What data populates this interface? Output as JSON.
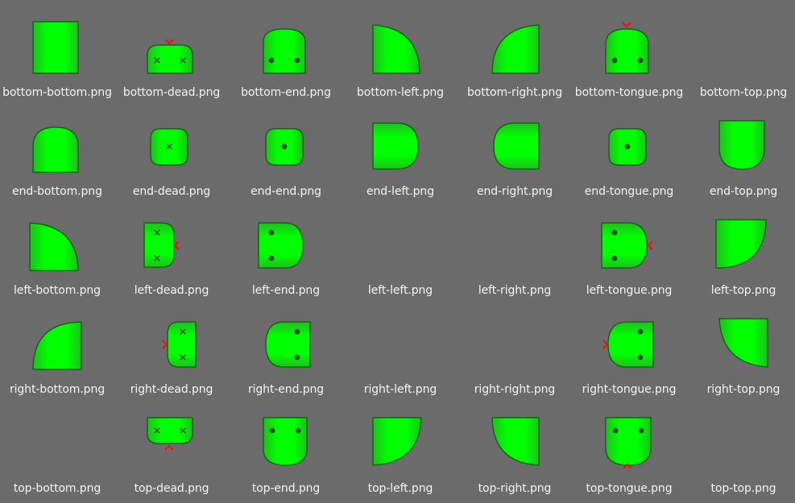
{
  "files": [
    {
      "name": "bottom-bottom.png",
      "icon": "vertical-pipe-tile-icon"
    },
    {
      "name": "bottom-dead.png",
      "icon": "bottom-dead-tile-icon"
    },
    {
      "name": "bottom-end.png",
      "icon": "bottom-end-tile-icon"
    },
    {
      "name": "bottom-left.png",
      "icon": "bottom-left-corner-tile-icon"
    },
    {
      "name": "bottom-right.png",
      "icon": "bottom-right-corner-tile-icon"
    },
    {
      "name": "bottom-tongue.png",
      "icon": "bottom-tongue-tile-icon"
    },
    {
      "name": "bottom-top.png",
      "icon": "vertical-pipe-tile-icon"
    },
    {
      "name": "end-bottom.png",
      "icon": "end-bottom-tile-icon"
    },
    {
      "name": "end-dead.png",
      "icon": "end-dead-tile-icon"
    },
    {
      "name": "end-end.png",
      "icon": "end-end-tile-icon"
    },
    {
      "name": "end-left.png",
      "icon": "end-left-tile-icon"
    },
    {
      "name": "end-right.png",
      "icon": "end-right-tile-icon"
    },
    {
      "name": "end-tongue.png",
      "icon": "end-tongue-tile-icon"
    },
    {
      "name": "end-top.png",
      "icon": "end-top-tile-icon"
    },
    {
      "name": "left-bottom.png",
      "icon": "left-bottom-corner-tile-icon"
    },
    {
      "name": "left-dead.png",
      "icon": "left-dead-tile-icon"
    },
    {
      "name": "left-end.png",
      "icon": "left-end-tile-icon"
    },
    {
      "name": "left-left.png",
      "icon": "horizontal-pipe-tile-icon"
    },
    {
      "name": "left-right.png",
      "icon": "horizontal-pipe-tile-icon"
    },
    {
      "name": "left-tongue.png",
      "icon": "left-tongue-tile-icon"
    },
    {
      "name": "left-top.png",
      "icon": "left-top-corner-tile-icon"
    },
    {
      "name": "right-bottom.png",
      "icon": "right-bottom-corner-tile-icon"
    },
    {
      "name": "right-dead.png",
      "icon": "right-dead-tile-icon"
    },
    {
      "name": "right-end.png",
      "icon": "right-end-tile-icon"
    },
    {
      "name": "right-left.png",
      "icon": "horizontal-pipe-tile-icon"
    },
    {
      "name": "right-right.png",
      "icon": "horizontal-pipe-tile-icon"
    },
    {
      "name": "right-tongue.png",
      "icon": "right-tongue-tile-icon"
    },
    {
      "name": "right-top.png",
      "icon": "right-top-corner-tile-icon"
    },
    {
      "name": "top-bottom.png",
      "icon": "vertical-pipe-tile-icon"
    },
    {
      "name": "top-dead.png",
      "icon": "top-dead-tile-icon"
    },
    {
      "name": "top-end.png",
      "icon": "top-end-tile-icon"
    },
    {
      "name": "top-left.png",
      "icon": "top-left-corner-tile-icon"
    },
    {
      "name": "top-right.png",
      "icon": "top-right-corner-tile-icon"
    },
    {
      "name": "top-tongue.png",
      "icon": "top-tongue-tile-icon"
    },
    {
      "name": "top-top.png",
      "icon": "vertical-pipe-tile-icon"
    }
  ],
  "colors": {
    "background": "#6b6b6b",
    "label": "#f4f4f4",
    "fill_center": "#00ff00",
    "fill_edge": "#1fbf1f",
    "outline": "#116611",
    "dot": "#115511",
    "marker": "#ee1111"
  }
}
